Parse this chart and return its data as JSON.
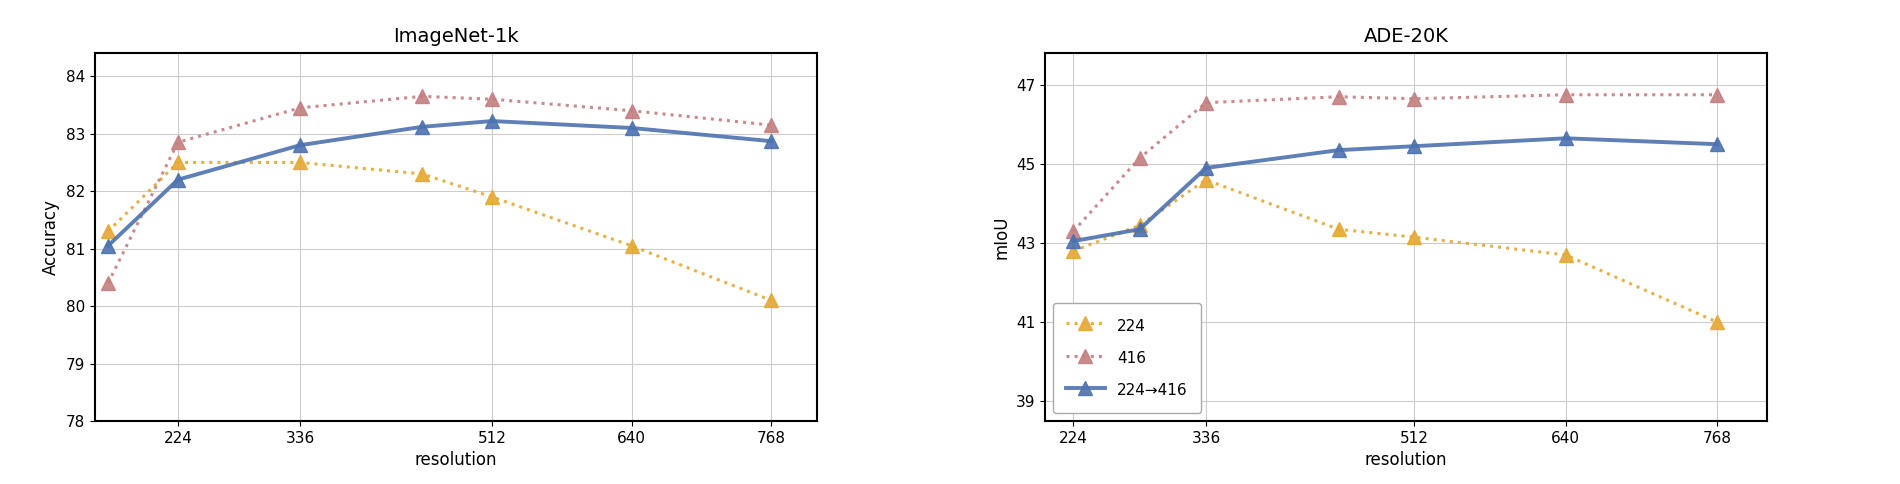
{
  "imagenet": {
    "title": "ImageNet-1k",
    "ylabel": "Accuracy",
    "xlabel": "resolution",
    "ylim": [
      78,
      84.4
    ],
    "yticks": [
      78,
      79,
      80,
      81,
      82,
      83,
      84
    ],
    "xlim": [
      148,
      810
    ],
    "x": [
      160,
      224,
      336,
      448,
      512,
      640,
      768
    ],
    "xticks": [
      224,
      336,
      512,
      640,
      768
    ],
    "series": {
      "224": {
        "y": [
          81.3,
          82.5,
          82.5,
          82.3,
          81.9,
          81.05,
          80.1
        ],
        "color": "#E5A832",
        "linestyle": "dotted",
        "linewidth": 2.2,
        "marker": "^",
        "markersize": 10,
        "label": "224"
      },
      "416": {
        "y": [
          80.4,
          82.85,
          83.45,
          83.65,
          83.6,
          83.4,
          83.15
        ],
        "color": "#C47E80",
        "linestyle": "dotted",
        "linewidth": 2.2,
        "marker": "^",
        "markersize": 10,
        "label": "416"
      },
      "224to416": {
        "y": [
          81.05,
          82.2,
          82.8,
          83.12,
          83.22,
          83.1,
          82.87
        ],
        "color": "#4C72B0",
        "linestyle": "solid",
        "linewidth": 2.8,
        "marker": "^",
        "markersize": 10,
        "label": "224→416"
      }
    }
  },
  "ade20k": {
    "title": "ADE-20K",
    "ylabel": "mIoU",
    "xlabel": "resolution",
    "ylim": [
      38.5,
      47.8
    ],
    "yticks": [
      39,
      41,
      43,
      45,
      47
    ],
    "xlim": [
      200,
      810
    ],
    "x": [
      224,
      280,
      336,
      448,
      512,
      640,
      768
    ],
    "xticks": [
      224,
      336,
      512,
      640,
      768
    ],
    "series": {
      "224": {
        "y": [
          42.8,
          43.45,
          44.6,
          43.35,
          43.15,
          42.7,
          41.0
        ],
        "color": "#E5A832",
        "linestyle": "dotted",
        "linewidth": 2.2,
        "marker": "^",
        "markersize": 10,
        "label": "224"
      },
      "416": {
        "y": [
          43.3,
          45.15,
          46.55,
          46.7,
          46.65,
          46.75,
          46.75
        ],
        "color": "#C47E80",
        "linestyle": "dotted",
        "linewidth": 2.2,
        "marker": "^",
        "markersize": 10,
        "label": "416"
      },
      "224to416": {
        "y": [
          43.05,
          43.35,
          44.9,
          45.35,
          45.45,
          45.65,
          45.5
        ],
        "color": "#4C72B0",
        "linestyle": "solid",
        "linewidth": 2.8,
        "marker": "^",
        "markersize": 10,
        "label": "224→416"
      }
    }
  },
  "fig_background": "#ffffff",
  "ax_background": "#ffffff",
  "grid_color": "#cccccc",
  "grid_linewidth": 0.8,
  "spine_color": "#000000",
  "spine_linewidth": 1.5,
  "legend_loc": "lower left",
  "legend_fontsize": 11,
  "title_fontsize": 14,
  "label_fontsize": 12,
  "tick_fontsize": 11,
  "fig_width": 19.0,
  "fig_height": 4.84
}
